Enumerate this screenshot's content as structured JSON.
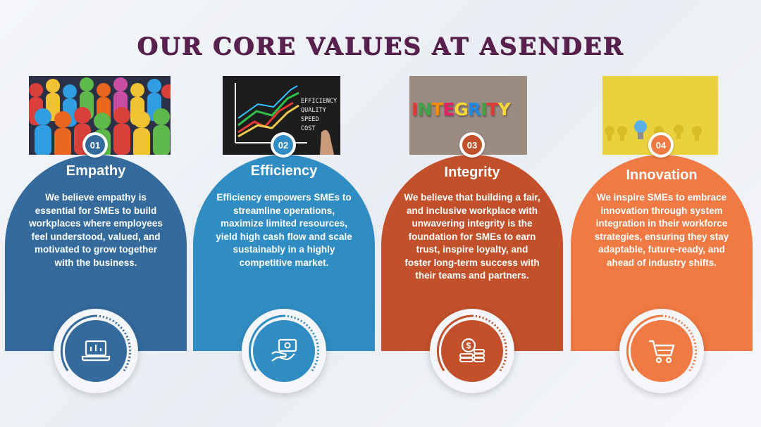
{
  "title": "OUR CORE VALUES AT ASENDER",
  "colors": {
    "empathy": "#346a9c",
    "efficiency": "#2f8dc3",
    "integrity": "#c2502a",
    "innovation": "#f07a43",
    "title": "#5a2050"
  },
  "cards": [
    {
      "number": "01",
      "heading": "Empathy",
      "text": "We believe empathy is essential for SMEs to build workplaces where employees feel understood, valued, and motivated to grow together with the business.",
      "icon": "laptop-icon"
    },
    {
      "number": "02",
      "heading": "Efficiency",
      "text": "Efficiency empowers SMEs to streamline operations, maximize limited resources, yield high cash flow and scale sustainably in a highly competitive market.",
      "icon": "hand-money-icon"
    },
    {
      "number": "03",
      "heading": "Integrity",
      "text": "We believe that building a fair, and inclusive workplace with unwavering integrity is the foundation for SMEs to earn trust, inspire loyalty, and foster long-term success with their teams and partners.",
      "icon": "coins-icon"
    },
    {
      "number": "04",
      "heading": "Innovation",
      "text": "We inspire SMEs to embrace innovation through system integration in their workforce strategies, ensuring they stay adaptable, future-ready, and ahead of industry shifts.",
      "icon": "cart-icon"
    }
  ],
  "photo_texts": {
    "efficiency_board": [
      "EFFICIENCY",
      "QUALITY",
      "SPEED",
      "COST"
    ],
    "integrity_letters": [
      "I",
      "N",
      "T",
      "E",
      "G",
      "R",
      "I",
      "T",
      "Y"
    ]
  }
}
